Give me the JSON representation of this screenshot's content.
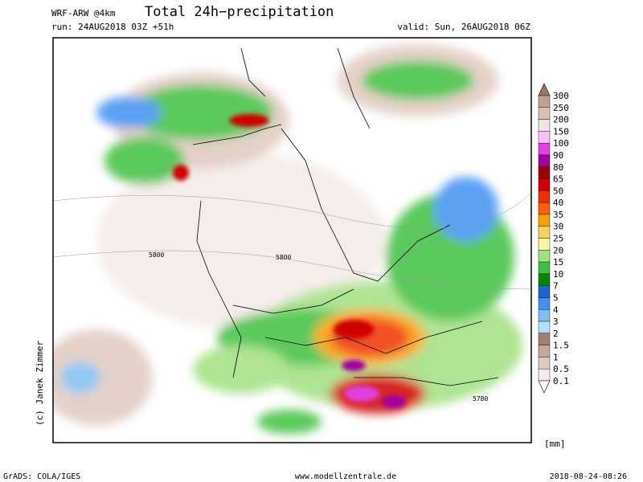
{
  "header": {
    "model": "WRF-ARW @4km",
    "title": "Total 24h−precipitation",
    "run": "run: 24AUG2018 03Z +51h",
    "valid": "valid: Sun, 26AUG2018 06Z"
  },
  "map": {
    "contour_labels": [
      "5800",
      "5800",
      "5780"
    ],
    "credit": "(c) Janek Zimmer"
  },
  "legend": {
    "unit": "[mm]",
    "levels": [
      "300",
      "250",
      "200",
      "150",
      "100",
      "90",
      "80",
      "65",
      "50",
      "40",
      "35",
      "30",
      "25",
      "20",
      "15",
      "10",
      "7",
      "5",
      "4",
      "3",
      "2",
      "1.5",
      "1",
      "0.5",
      "0.1"
    ],
    "colors": [
      "#a07868",
      "#c0a090",
      "#d8c0b0",
      "#f0e4dc",
      "#f8c0f8",
      "#e040e0",
      "#a000a0",
      "#a00000",
      "#d00000",
      "#f03000",
      "#f86000",
      "#f8a000",
      "#f8d060",
      "#f8f8a0",
      "#a0e080",
      "#40c040",
      "#008800",
      "#2060d0",
      "#4090f0",
      "#80c0f0",
      "#b0e0f8",
      "#a08070",
      "#c8a898",
      "#e0cac0",
      "#f4eae6",
      "#ffffff"
    ]
  },
  "footer": {
    "left": "GrADS: COLA/IGES",
    "center": "www.modellzentrale.de",
    "right": "2018-08-24-08:26"
  }
}
